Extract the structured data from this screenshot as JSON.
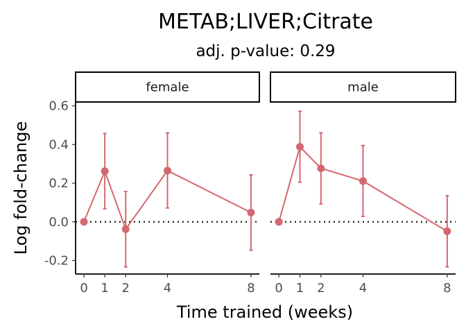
{
  "chart_data": {
    "type": "line",
    "title": "METAB;LIVER;Citrate",
    "subtitle": "adj. p-value: 0.29",
    "xlabel": "Time trained (weeks)",
    "ylabel": "Log fold-change",
    "x_ticks": [
      0,
      1,
      2,
      4,
      8
    ],
    "x_tick_labels": [
      "0",
      "1",
      "2",
      "4",
      "8"
    ],
    "y_ticks": [
      -0.2,
      0.0,
      0.2,
      0.4,
      0.6
    ],
    "y_tick_labels": [
      "-0.2",
      "0.0",
      "0.2",
      "0.4",
      "0.6"
    ],
    "xlim": [
      -0.4,
      8.4
    ],
    "ylim": [
      -0.27,
      0.62
    ],
    "reference_line": {
      "y": 0,
      "style": "dotted",
      "color": "#000000"
    },
    "series_color": "#d4676f",
    "grid": false,
    "panels": [
      {
        "label": "female",
        "x": [
          0,
          1,
          2,
          4,
          8
        ],
        "y": [
          0.0,
          0.262,
          -0.038,
          0.265,
          0.048
        ],
        "ymin": [
          null,
          0.068,
          -0.233,
          0.072,
          -0.147
        ],
        "ymax": [
          null,
          0.457,
          0.157,
          0.46,
          0.243
        ]
      },
      {
        "label": "male",
        "x": [
          0,
          1,
          2,
          4,
          8
        ],
        "y": [
          0.0,
          0.388,
          0.277,
          0.211,
          -0.049
        ],
        "ymin": [
          null,
          0.205,
          0.093,
          0.028,
          -0.233
        ],
        "ymax": [
          null,
          0.572,
          0.461,
          0.395,
          0.135
        ]
      }
    ]
  }
}
